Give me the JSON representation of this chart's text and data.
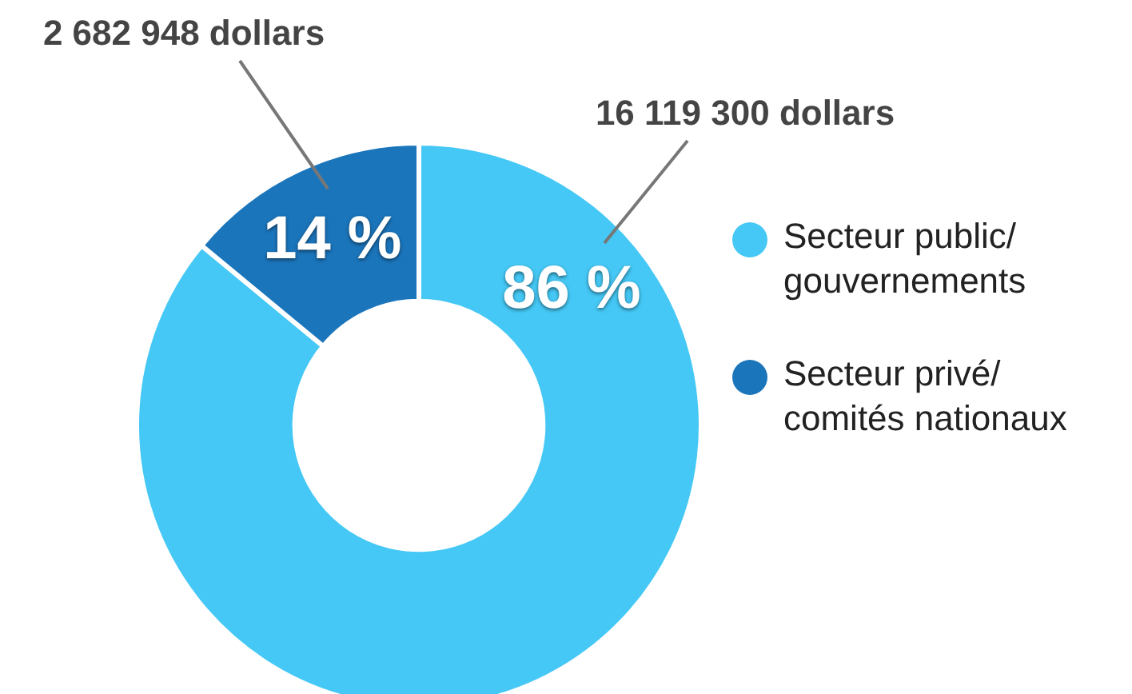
{
  "chart_data": {
    "type": "donut",
    "categories": [
      "Secteur public/ gouvernements",
      "Secteur privé/ comités nationaux"
    ],
    "values": [
      86,
      14
    ],
    "value_labels": [
      "86 %",
      "14 %"
    ],
    "colors": [
      "#45c8f5",
      "#1b75bb"
    ],
    "annotations": [
      "16 119 300 dollars",
      "2 682 948 dollars"
    ],
    "legend": "right"
  }
}
